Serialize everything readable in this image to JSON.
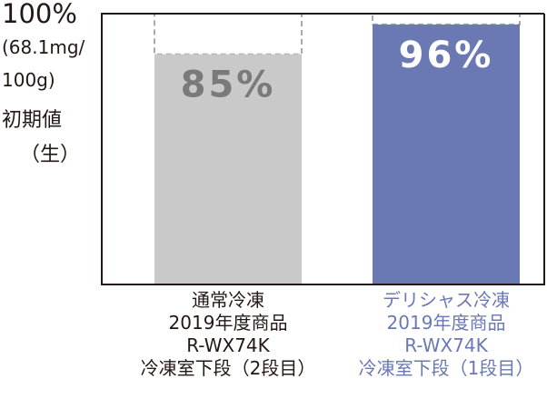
{
  "chart_data": {
    "type": "bar",
    "categories": [
      "通常冷凍\n2019年度商品\nR-WX74K\n冷凍室下段（2段目）",
      "デリシャス冷凍\n2019年度商品\nR-WX74K\n冷凍室下段（1段目）"
    ],
    "category_lines": [
      [
        "通常冷凍",
        "2019年度商品",
        "R-WX74K",
        "冷凍室下段（2段目）"
      ],
      [
        "デリシャス冷凍",
        "2019年度商品",
        "R-WX74K",
        "冷凍室下段（1段目）"
      ]
    ],
    "values": [
      85,
      96
    ],
    "data_labels": [
      "85%",
      "96%"
    ],
    "ylim": [
      0,
      100
    ],
    "ylabel_lines": [
      "100%",
      "(68.1mg/",
      "100g)",
      "初期値",
      "（生）"
    ],
    "colors": [
      "#c9c9c9",
      "#6a78b4"
    ],
    "label_colors": [
      "#7a7a7a",
      "#ffffff"
    ],
    "category_colors": [
      "#231815",
      "#6a78b4"
    ],
    "outline_color": "#aaaaaa"
  }
}
